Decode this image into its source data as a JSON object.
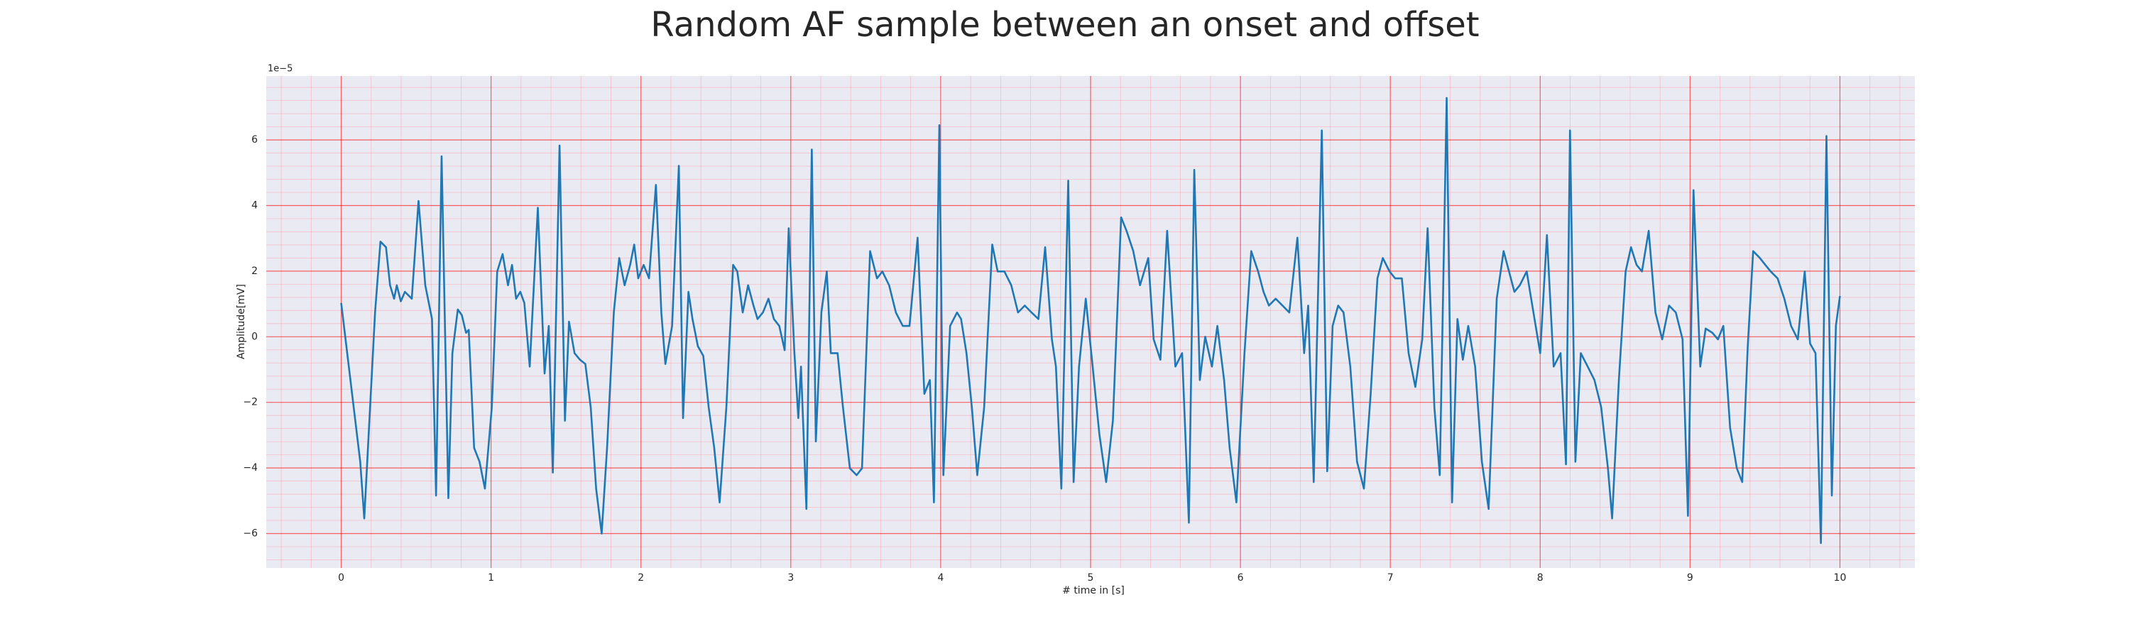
{
  "chart_data": {
    "type": "line",
    "title": "Random AF sample between an onset and offset",
    "xlabel": "# time in [s]",
    "ylabel": "Amplitude[mV]",
    "y_offset_label": "1e−5",
    "xlim": [
      -0.5,
      10.5
    ],
    "ylim": [
      -7.05,
      7.95
    ],
    "xticks": [
      0,
      1,
      2,
      3,
      4,
      5,
      6,
      7,
      8,
      9,
      10
    ],
    "yticks": [
      {
        "value": -6,
        "label": "−6"
      },
      {
        "value": -4,
        "label": "−4"
      },
      {
        "value": -2,
        "label": "−2"
      },
      0,
      2,
      4,
      6
    ],
    "grid": true,
    "minor_grid": true,
    "x": [
      0,
      0.127,
      0.154,
      0.226,
      0.262,
      0.299,
      0.326,
      0.353,
      0.371,
      0.398,
      0.425,
      0.471,
      0.516,
      0.561,
      0.606,
      0.633,
      0.67,
      0.715,
      0.742,
      0.778,
      0.805,
      0.833,
      0.851,
      0.887,
      0.923,
      0.959,
      1.005,
      1.041,
      1.077,
      1.113,
      1.14,
      1.167,
      1.195,
      1.222,
      1.258,
      1.312,
      1.357,
      1.385,
      1.412,
      1.457,
      1.493,
      1.52,
      1.557,
      1.593,
      1.629,
      1.665,
      1.701,
      1.738,
      1.774,
      1.819,
      1.855,
      1.891,
      1.928,
      1.955,
      1.982,
      2.018,
      2.054,
      2.1,
      2.136,
      2.163,
      2.208,
      2.253,
      2.281,
      2.317,
      2.344,
      2.38,
      2.416,
      2.452,
      2.489,
      2.525,
      2.57,
      2.615,
      2.643,
      2.679,
      2.715,
      2.751,
      2.778,
      2.814,
      2.851,
      2.887,
      2.923,
      2.959,
      2.986,
      3.023,
      3.05,
      3.068,
      3.104,
      3.14,
      3.167,
      3.204,
      3.24,
      3.267,
      3.312,
      3.348,
      3.394,
      3.439,
      3.475,
      3.529,
      3.575,
      3.611,
      3.656,
      3.701,
      3.747,
      3.792,
      3.846,
      3.891,
      3.928,
      3.955,
      3.991,
      4.018,
      4.063,
      4.109,
      4.136,
      4.172,
      4.208,
      4.244,
      4.29,
      4.344,
      4.38,
      4.425,
      4.471,
      4.516,
      4.561,
      4.606,
      4.652,
      4.697,
      4.742,
      4.769,
      4.805,
      4.851,
      4.887,
      4.923,
      4.968,
      5.014,
      5.059,
      5.104,
      5.149,
      5.204,
      5.24,
      5.285,
      5.33,
      5.385,
      5.421,
      5.466,
      5.511,
      5.566,
      5.611,
      5.656,
      5.692,
      5.729,
      5.765,
      5.81,
      5.846,
      5.891,
      5.928,
      5.973,
      6.027,
      6.072,
      6.118,
      6.154,
      6.19,
      6.235,
      6.281,
      6.326,
      6.38,
      6.425,
      6.452,
      6.489,
      6.543,
      6.579,
      6.615,
      6.652,
      6.688,
      6.733,
      6.778,
      6.824,
      6.869,
      6.914,
      6.95,
      6.995,
      7.032,
      7.077,
      7.122,
      7.167,
      7.213,
      7.249,
      7.294,
      7.33,
      7.376,
      7.412,
      7.448,
      7.484,
      7.52,
      7.566,
      7.611,
      7.656,
      7.71,
      7.756,
      7.792,
      7.828,
      7.864,
      7.91,
      7.955,
      8,
      8.045,
      8.09,
      8.136,
      8.172,
      8.199,
      8.235,
      8.271,
      8.317,
      8.362,
      8.407,
      8.452,
      8.48,
      8.525,
      8.57,
      8.606,
      8.643,
      8.679,
      8.724,
      8.769,
      8.814,
      8.86,
      8.905,
      8.95,
      8.986,
      9.023,
      9.068,
      9.104,
      9.149,
      9.186,
      9.222,
      9.267,
      9.312,
      9.348,
      9.385,
      9.421,
      9.466,
      9.502,
      9.538,
      9.584,
      9.629,
      9.674,
      9.719,
      9.765,
      9.801,
      9.837,
      9.873,
      9.91,
      9.946,
      9.973,
      10
    ],
    "series": [
      {
        "color": "#1f77b4",
        "values": [
          1.03,
          -3.81,
          -5.54,
          0.74,
          2.9,
          2.73,
          1.57,
          1.16,
          1.57,
          1.08,
          1.37,
          1.16,
          4.14,
          1.57,
          0.54,
          -4.84,
          5.5,
          -4.92,
          -0.5,
          0.83,
          0.66,
          0.12,
          0.21,
          -3.39,
          -3.81,
          -4.63,
          -2.15,
          1.99,
          2.52,
          1.57,
          2.19,
          1.16,
          1.37,
          1.03,
          -0.91,
          3.93,
          -1.12,
          0.33,
          -4.14,
          5.83,
          -2.56,
          0.46,
          -0.5,
          -0.7,
          -0.83,
          -2.15,
          -4.63,
          -6,
          -3.39,
          0.74,
          2.4,
          1.57,
          2.19,
          2.81,
          1.78,
          2.19,
          1.78,
          4.63,
          0.74,
          -0.83,
          0.33,
          5.21,
          -2.48,
          1.37,
          0.54,
          -0.29,
          -0.58,
          -2.15,
          -3.39,
          -5.05,
          -2.15,
          2.19,
          1.99,
          0.74,
          1.57,
          0.95,
          0.54,
          0.74,
          1.16,
          0.54,
          0.33,
          -0.41,
          3.31,
          -0.41,
          -2.48,
          -0.91,
          -5.25,
          5.71,
          -3.19,
          0.74,
          1.99,
          -0.5,
          -0.5,
          -2.15,
          -4.01,
          -4.22,
          -4.01,
          2.61,
          1.78,
          1.99,
          1.57,
          0.74,
          0.33,
          0.33,
          3.02,
          -1.74,
          -1.32,
          -5.05,
          6.45,
          -4.22,
          0.33,
          0.74,
          0.54,
          -0.5,
          -2.15,
          -4.22,
          -2.15,
          2.81,
          1.99,
          1.99,
          1.57,
          0.74,
          0.95,
          0.74,
          0.54,
          2.73,
          -0.08,
          -0.91,
          -4.63,
          4.76,
          -4.43,
          -0.91,
          1.16,
          -0.91,
          -2.98,
          -4.43,
          -2.56,
          3.64,
          3.23,
          2.61,
          1.57,
          2.4,
          -0.08,
          -0.7,
          3.23,
          -0.91,
          -0.5,
          -5.67,
          5.09,
          -1.32,
          0,
          -0.91,
          0.33,
          -1.32,
          -3.39,
          -5.05,
          -0.5,
          2.61,
          1.99,
          1.37,
          0.95,
          1.16,
          0.95,
          0.74,
          3.02,
          -0.5,
          0.95,
          -4.43,
          6.29,
          -4.1,
          0.33,
          0.95,
          0.74,
          -0.91,
          -3.81,
          -4.63,
          -1.74,
          1.78,
          2.4,
          1.99,
          1.78,
          1.78,
          -0.5,
          -1.53,
          -0.08,
          3.31,
          -2.15,
          -4.22,
          7.28,
          -5.05,
          0.54,
          -0.7,
          0.33,
          -0.91,
          -3.81,
          -5.25,
          1.16,
          2.61,
          1.99,
          1.37,
          1.57,
          1.99,
          0.74,
          -0.5,
          3.1,
          -0.91,
          -0.5,
          -3.89,
          6.29,
          -3.81,
          -0.5,
          -0.91,
          -1.32,
          -2.15,
          -4.01,
          -5.54,
          -1.32,
          1.99,
          2.73,
          2.19,
          1.99,
          3.23,
          0.74,
          -0.08,
          0.95,
          0.74,
          -0.08,
          -5.46,
          4.47,
          -0.91,
          0.25,
          0.12,
          -0.08,
          0.33,
          -2.77,
          -4.01,
          -4.43,
          -0.29,
          2.61,
          2.4,
          2.19,
          1.99,
          1.78,
          1.16,
          0.33,
          -0.08,
          1.99,
          -0.21,
          -0.5,
          -6.29,
          6.12,
          -4.84,
          0.33,
          1.24
        ]
      }
    ]
  }
}
